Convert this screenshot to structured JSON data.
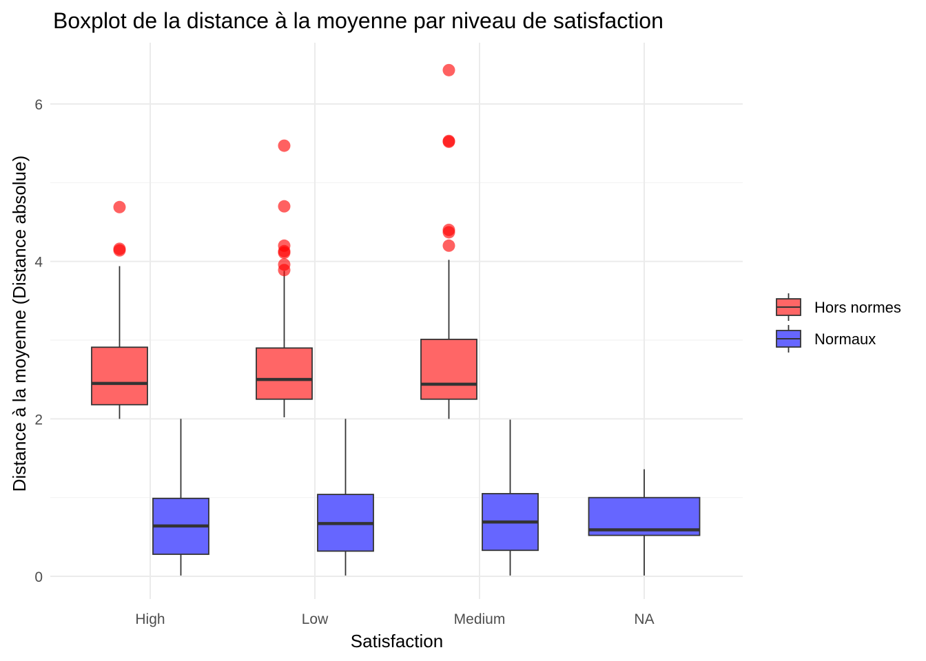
{
  "chart_data": {
    "type": "boxplot",
    "title": "Boxplot de la distance à la moyenne par niveau de satisfaction",
    "xlabel": "Satisfaction",
    "ylabel": "Distance à la moyenne (Distance absolue)",
    "categories": [
      "High",
      "Low",
      "Medium",
      "NA"
    ],
    "ylim": [
      -0.27,
      6.7
    ],
    "yticks": [
      0,
      2,
      4,
      6
    ],
    "grid": true,
    "legend": {
      "position": "right"
    },
    "series": [
      {
        "name": "Hors normes",
        "color": "#ff6666",
        "boxes": [
          {
            "category": "High",
            "whisker_low": 2.0,
            "q1": 2.18,
            "median": 2.45,
            "q3": 2.91,
            "whisker_high": 3.94,
            "outliers": [
              4.14,
              4.16,
              4.69
            ]
          },
          {
            "category": "Low",
            "whisker_low": 2.02,
            "q1": 2.25,
            "median": 2.5,
            "q3": 2.9,
            "whisker_high": 3.88,
            "outliers": [
              3.89,
              3.96,
              4.11,
              4.13,
              4.2,
              4.7,
              5.47
            ]
          },
          {
            "category": "Medium",
            "whisker_low": 2.0,
            "q1": 2.25,
            "median": 2.44,
            "q3": 3.01,
            "whisker_high": 4.02,
            "outliers": [
              4.2,
              4.37,
              4.4,
              5.52,
              5.53,
              6.43
            ]
          }
        ]
      },
      {
        "name": "Normaux",
        "color": "#6666ff",
        "boxes": [
          {
            "category": "High",
            "whisker_low": 0.01,
            "q1": 0.28,
            "median": 0.64,
            "q3": 0.99,
            "whisker_high": 2.0,
            "outliers": []
          },
          {
            "category": "Low",
            "whisker_low": 0.01,
            "q1": 0.32,
            "median": 0.67,
            "q3": 1.04,
            "whisker_high": 2.0,
            "outliers": []
          },
          {
            "category": "Medium",
            "whisker_low": 0.01,
            "q1": 0.33,
            "median": 0.69,
            "q3": 1.05,
            "whisker_high": 1.99,
            "outliers": []
          },
          {
            "category": "NA",
            "whisker_low": 0.01,
            "q1": 0.52,
            "median": 0.59,
            "q3": 1.0,
            "whisker_high": 1.36,
            "outliers": []
          }
        ]
      }
    ]
  }
}
